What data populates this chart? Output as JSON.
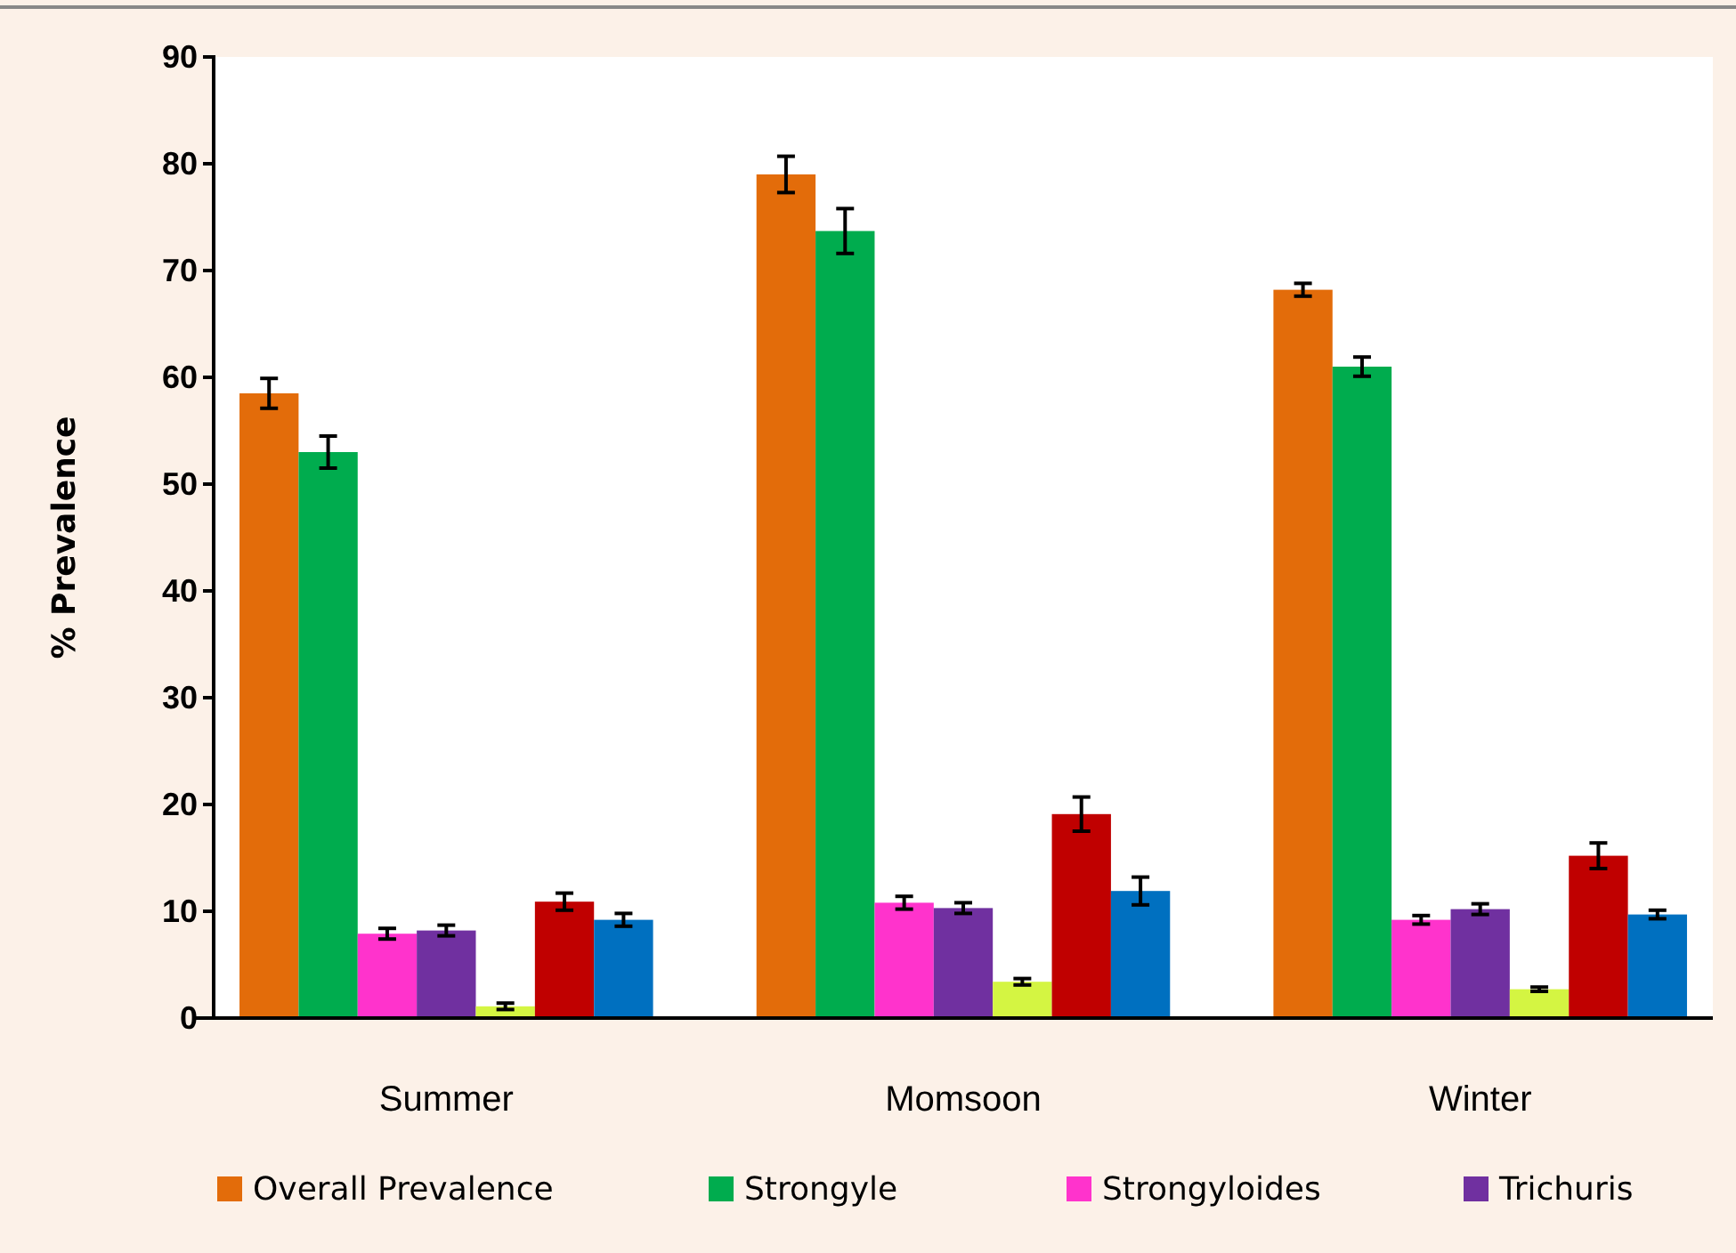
{
  "chart_data": {
    "type": "bar",
    "ylabel": "% Prevalence",
    "categories": [
      "Summer",
      "Momsoon",
      "Winter"
    ],
    "series": [
      {
        "name": "Overall Prevalence",
        "color": "#e36c0a",
        "values": [
          58.5,
          79.0,
          68.2
        ],
        "errors": [
          1.4,
          1.7,
          0.6
        ]
      },
      {
        "name": "Strongyle",
        "color": "#00ac4e",
        "values": [
          53.0,
          73.7,
          61.0
        ],
        "errors": [
          1.5,
          2.1,
          0.9
        ]
      },
      {
        "name": "Strongyloides",
        "color": "#ff33cc",
        "values": [
          7.9,
          10.8,
          9.2
        ],
        "errors": [
          0.5,
          0.6,
          0.4
        ]
      },
      {
        "name": "Trichuris",
        "color": "#7030a0",
        "values": [
          8.2,
          10.3,
          10.2
        ],
        "errors": [
          0.5,
          0.5,
          0.5
        ]
      },
      {
        "color": "#d4f542",
        "values": [
          1.1,
          3.4,
          2.7
        ],
        "errors": [
          0.3,
          0.3,
          0.2
        ]
      },
      {
        "color": "#c00000",
        "values": [
          10.9,
          19.1,
          15.2
        ],
        "errors": [
          0.8,
          1.6,
          1.2
        ]
      },
      {
        "color": "#0070c0",
        "values": [
          9.2,
          11.9,
          9.7
        ],
        "errors": [
          0.6,
          1.3,
          0.4
        ]
      }
    ],
    "ylim": [
      0,
      90
    ],
    "yticks": [
      0,
      10,
      20,
      30,
      40,
      50,
      60,
      70,
      80,
      90
    ],
    "grid": false,
    "legend": "bottom"
  }
}
